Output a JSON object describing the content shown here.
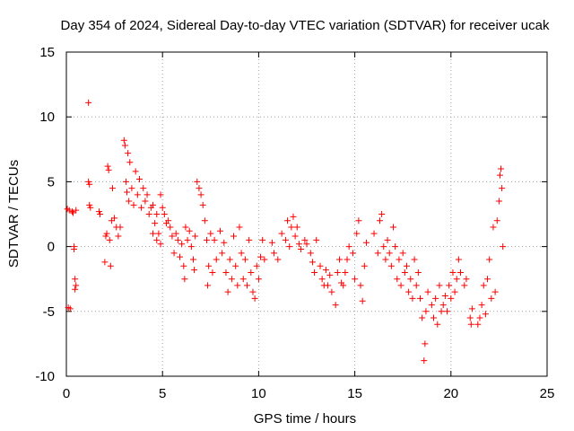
{
  "chart_data": {
    "type": "scatter",
    "title": "Day 354 of 2024, Sidereal Day-to-day VTEC variation (SDTVAR) for receiver ucak",
    "xlabel": "GPS time / hours",
    "ylabel": "SDTVAR / TECUs",
    "xlim": [
      0,
      25
    ],
    "ylim": [
      -10,
      15
    ],
    "xticks": [
      0,
      5,
      10,
      15,
      20,
      25
    ],
    "yticks": [
      -10,
      -5,
      0,
      5,
      10,
      15
    ],
    "grid": true,
    "marker": "+",
    "color": "#ff0000",
    "series": [
      {
        "name": "SDTVAR",
        "points": [
          [
            0.05,
            2.9
          ],
          [
            0.1,
            -4.7
          ],
          [
            0.15,
            2.8
          ],
          [
            0.2,
            -4.8
          ],
          [
            0.3,
            2.7
          ],
          [
            0.35,
            2.6
          ],
          [
            0.4,
            -0.2
          ],
          [
            0.45,
            -3.3
          ],
          [
            0.5,
            2.8
          ],
          [
            0.5,
            -3.0
          ],
          [
            0.45,
            -2.5
          ],
          [
            0.4,
            0.0
          ],
          [
            1.15,
            11.1
          ],
          [
            1.15,
            5.0
          ],
          [
            1.2,
            4.8
          ],
          [
            1.2,
            3.2
          ],
          [
            1.25,
            3.0
          ],
          [
            1.7,
            2.7
          ],
          [
            1.75,
            2.5
          ],
          [
            2.0,
            -1.2
          ],
          [
            2.05,
            0.8
          ],
          [
            2.1,
            1.0
          ],
          [
            2.15,
            6.2
          ],
          [
            2.2,
            5.9
          ],
          [
            2.25,
            0.5
          ],
          [
            2.3,
            -1.5
          ],
          [
            2.35,
            2.0
          ],
          [
            2.4,
            4.5
          ],
          [
            2.5,
            2.2
          ],
          [
            2.6,
            1.5
          ],
          [
            2.7,
            0.8
          ],
          [
            2.8,
            1.5
          ],
          [
            3.0,
            8.2
          ],
          [
            3.05,
            7.8
          ],
          [
            3.1,
            5.0
          ],
          [
            3.15,
            4.2
          ],
          [
            3.2,
            7.2
          ],
          [
            3.25,
            3.5
          ],
          [
            3.3,
            6.5
          ],
          [
            3.4,
            4.5
          ],
          [
            3.5,
            3.2
          ],
          [
            3.6,
            5.8
          ],
          [
            3.7,
            4.0
          ],
          [
            3.8,
            5.2
          ],
          [
            3.9,
            3.0
          ],
          [
            4.0,
            4.5
          ],
          [
            4.1,
            3.5
          ],
          [
            4.2,
            4.0
          ],
          [
            4.3,
            2.5
          ],
          [
            4.4,
            3.0
          ],
          [
            4.5,
            3.2
          ],
          [
            4.6,
            1.8
          ],
          [
            4.7,
            2.5
          ],
          [
            4.8,
            1.0
          ],
          [
            4.9,
            4.0
          ],
          [
            5.0,
            3.0
          ],
          [
            4.5,
            1.0
          ],
          [
            4.7,
            0.5
          ],
          [
            4.9,
            0.2
          ],
          [
            5.1,
            2.5
          ],
          [
            5.2,
            1.8
          ],
          [
            5.3,
            2.0
          ],
          [
            5.4,
            1.5
          ],
          [
            5.5,
            0.8
          ],
          [
            5.6,
            -0.5
          ],
          [
            5.7,
            1.0
          ],
          [
            5.8,
            0.5
          ],
          [
            5.9,
            -0.8
          ],
          [
            6.0,
            0.2
          ],
          [
            6.1,
            -1.5
          ],
          [
            6.15,
            -2.5
          ],
          [
            6.2,
            1.5
          ],
          [
            6.3,
            0.5
          ],
          [
            6.4,
            1.2
          ],
          [
            6.5,
            0.0
          ],
          [
            6.6,
            -1.0
          ],
          [
            6.65,
            -1.8
          ],
          [
            6.7,
            0.8
          ],
          [
            6.8,
            5.0
          ],
          [
            6.9,
            4.5
          ],
          [
            7.0,
            4.0
          ],
          [
            7.1,
            3.2
          ],
          [
            7.2,
            2.0
          ],
          [
            7.3,
            0.5
          ],
          [
            7.35,
            -3.0
          ],
          [
            7.4,
            -1.5
          ],
          [
            7.5,
            1.0
          ],
          [
            7.6,
            -2.0
          ],
          [
            7.7,
            0.5
          ],
          [
            7.8,
            -1.0
          ],
          [
            8.0,
            1.2
          ],
          [
            8.1,
            -0.5
          ],
          [
            8.2,
            0.3
          ],
          [
            8.3,
            -2.0
          ],
          [
            8.4,
            -3.5
          ],
          [
            8.5,
            -1.0
          ],
          [
            8.6,
            -2.5
          ],
          [
            8.7,
            0.8
          ],
          [
            8.8,
            -1.5
          ],
          [
            8.9,
            -3.0
          ],
          [
            9.0,
            1.5
          ],
          [
            9.1,
            -0.5
          ],
          [
            9.2,
            -2.5
          ],
          [
            9.3,
            -1.0
          ],
          [
            9.4,
            -3.0
          ],
          [
            9.5,
            0.5
          ],
          [
            9.6,
            -2.0
          ],
          [
            9.7,
            -3.5
          ],
          [
            9.8,
            -4.0
          ],
          [
            9.9,
            -1.5
          ],
          [
            10.0,
            -2.5
          ],
          [
            10.1,
            -0.8
          ],
          [
            10.2,
            0.5
          ],
          [
            10.3,
            -1.0
          ],
          [
            10.7,
            0.3
          ],
          [
            10.8,
            -0.5
          ],
          [
            11.0,
            -1.0
          ],
          [
            11.2,
            1.0
          ],
          [
            11.4,
            0.5
          ],
          [
            11.5,
            2.0
          ],
          [
            11.6,
            0.0
          ],
          [
            11.7,
            1.5
          ],
          [
            11.8,
            2.3
          ],
          [
            11.9,
            0.8
          ],
          [
            12.0,
            1.5
          ],
          [
            12.1,
            0.2
          ],
          [
            12.2,
            -0.2
          ],
          [
            12.4,
            0.5
          ],
          [
            12.5,
            0.2
          ],
          [
            12.7,
            -0.5
          ],
          [
            12.8,
            -1.2
          ],
          [
            12.9,
            -2.0
          ],
          [
            13.0,
            0.5
          ],
          [
            13.2,
            -1.5
          ],
          [
            13.3,
            -2.5
          ],
          [
            13.4,
            -3.0
          ],
          [
            13.5,
            -1.8
          ],
          [
            13.6,
            -3.0
          ],
          [
            13.7,
            -2.2
          ],
          [
            13.8,
            -3.5
          ],
          [
            14.0,
            -4.5
          ],
          [
            14.1,
            -2.0
          ],
          [
            14.2,
            -1.0
          ],
          [
            14.3,
            -2.8
          ],
          [
            14.4,
            -3.0
          ],
          [
            14.5,
            -2.0
          ],
          [
            14.6,
            -1.0
          ],
          [
            14.7,
            0.0
          ],
          [
            14.9,
            -0.5
          ],
          [
            15.0,
            -2.5
          ],
          [
            15.1,
            1.0
          ],
          [
            15.2,
            2.0
          ],
          [
            15.3,
            -3.0
          ],
          [
            15.4,
            -4.2
          ],
          [
            15.5,
            -1.5
          ],
          [
            15.6,
            0.3
          ],
          [
            16.0,
            1.0
          ],
          [
            16.2,
            -0.5
          ],
          [
            16.3,
            2.0
          ],
          [
            16.4,
            2.5
          ],
          [
            16.5,
            0.0
          ],
          [
            16.6,
            -1.0
          ],
          [
            16.7,
            0.5
          ],
          [
            16.8,
            -0.5
          ],
          [
            16.9,
            -1.5
          ],
          [
            17.0,
            1.5
          ],
          [
            17.1,
            0.0
          ],
          [
            17.2,
            -2.5
          ],
          [
            17.3,
            -1.0
          ],
          [
            17.4,
            -3.0
          ],
          [
            17.5,
            -0.5
          ],
          [
            17.6,
            -2.0
          ],
          [
            17.7,
            -1.5
          ],
          [
            17.8,
            -3.5
          ],
          [
            17.9,
            -2.5
          ],
          [
            18.0,
            -4.0
          ],
          [
            18.1,
            -1.0
          ],
          [
            18.2,
            -3.0
          ],
          [
            18.3,
            -2.0
          ],
          [
            18.4,
            -4.0
          ],
          [
            18.5,
            -5.5
          ],
          [
            18.6,
            -8.8
          ],
          [
            18.65,
            -7.5
          ],
          [
            18.7,
            -5.0
          ],
          [
            18.8,
            -3.5
          ],
          [
            19.0,
            -4.5
          ],
          [
            19.1,
            -5.5
          ],
          [
            19.2,
            -4.0
          ],
          [
            19.3,
            -6.0
          ],
          [
            19.4,
            -3.0
          ],
          [
            19.5,
            -5.0
          ],
          [
            19.6,
            -4.5
          ],
          [
            19.7,
            -3.8
          ],
          [
            19.8,
            -5.0
          ],
          [
            19.9,
            -3.0
          ],
          [
            20.0,
            -4.0
          ],
          [
            20.1,
            -2.0
          ],
          [
            20.2,
            -3.5
          ],
          [
            20.3,
            -2.5
          ],
          [
            20.4,
            -1.0
          ],
          [
            20.5,
            -2.0
          ],
          [
            20.7,
            -3.0
          ],
          [
            20.8,
            -2.5
          ],
          [
            21.0,
            -5.5
          ],
          [
            21.05,
            -6.0
          ],
          [
            21.1,
            -4.8
          ],
          [
            21.4,
            -6.0
          ],
          [
            21.5,
            -5.5
          ],
          [
            21.6,
            -4.5
          ],
          [
            21.7,
            -3.0
          ],
          [
            21.8,
            -5.2
          ],
          [
            21.9,
            -2.5
          ],
          [
            22.0,
            -1.0
          ],
          [
            22.1,
            -4.0
          ],
          [
            22.2,
            1.5
          ],
          [
            22.3,
            -3.5
          ],
          [
            22.4,
            2.0
          ],
          [
            22.5,
            3.5
          ],
          [
            22.55,
            5.5
          ],
          [
            22.6,
            6.0
          ],
          [
            22.65,
            4.5
          ],
          [
            22.7,
            0.0
          ]
        ]
      }
    ]
  }
}
